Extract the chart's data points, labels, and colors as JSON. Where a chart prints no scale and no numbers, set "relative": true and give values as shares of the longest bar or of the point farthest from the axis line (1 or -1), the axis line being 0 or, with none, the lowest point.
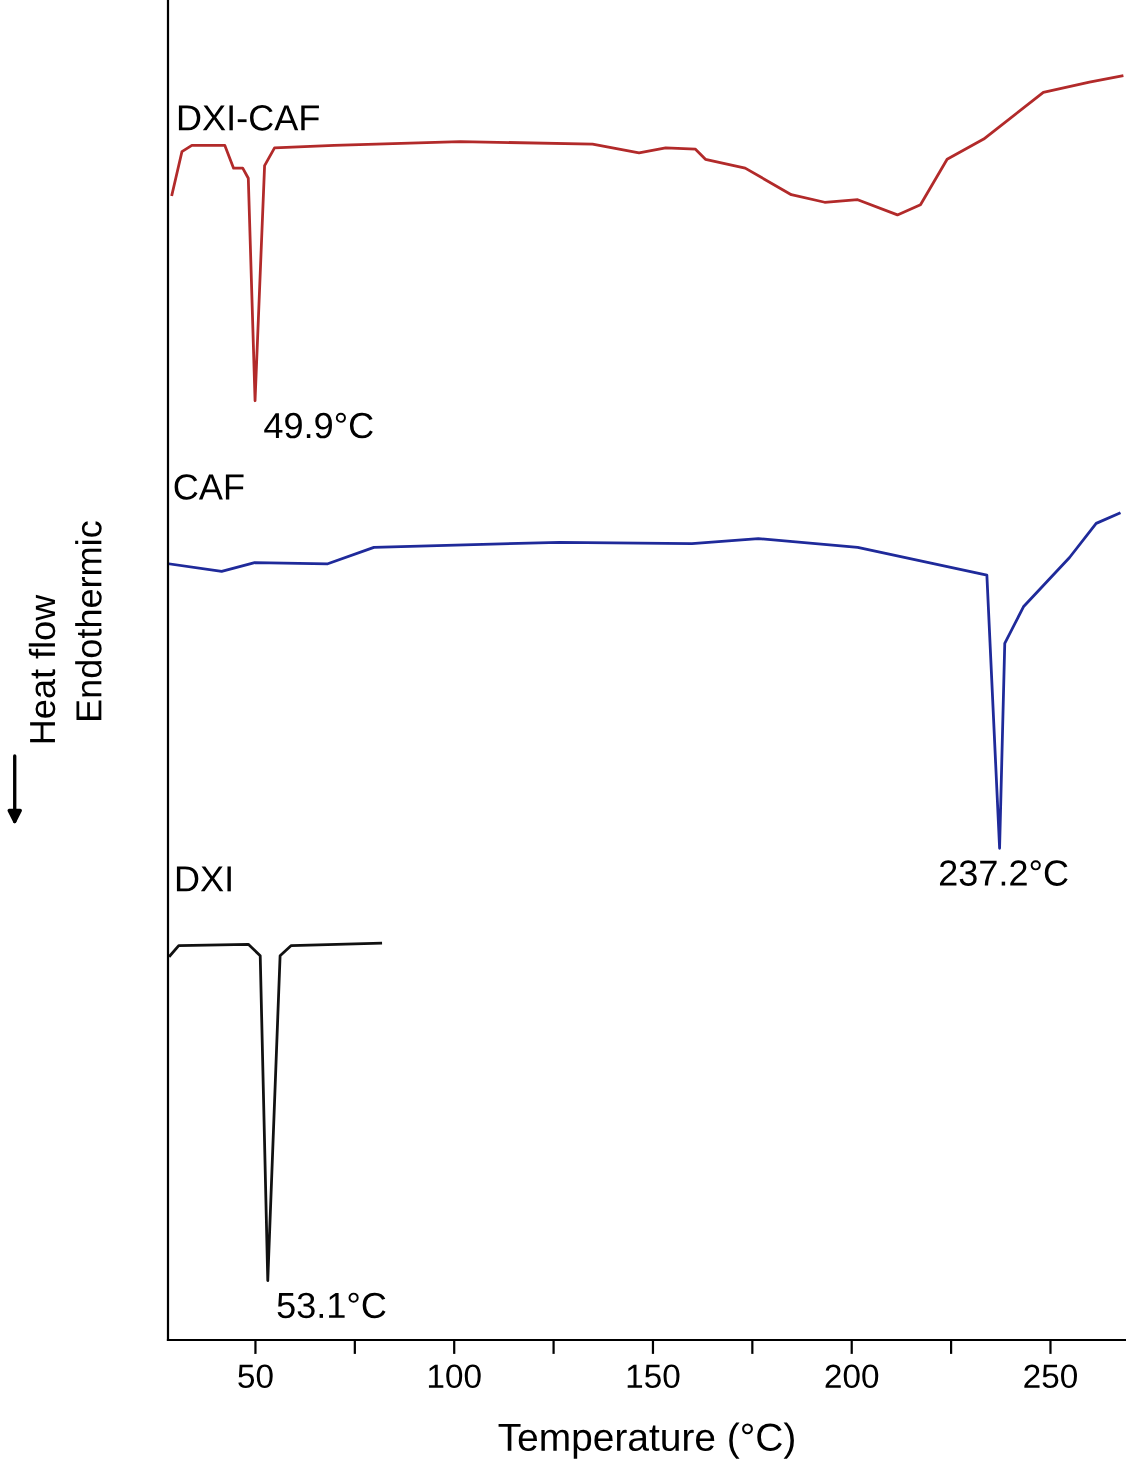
{
  "chart_data": {
    "type": "line",
    "relative": true,
    "xlabel": "Temperature (°C)",
    "ylabel": "Heat flow",
    "xlim": [
      28,
      269
    ],
    "xticks": [
      50,
      {
        "value": 75,
        "label": null
      },
      100,
      {
        "value": 125,
        "label": null
      },
      150,
      {
        "value": 175,
        "label": null
      },
      200,
      {
        "value": 225,
        "label": null
      },
      250
    ],
    "grid": false,
    "legend": false,
    "marker": "none",
    "line_style": "solid",
    "series": [
      {
        "name": "DXI-CAF",
        "color": "#b22a2a",
        "x": [
          29,
          31.5,
          34,
          42.3,
          44.5,
          46.8,
          48.2,
          49.9,
          52.3,
          54.8,
          69.8,
          101.5,
          134.8,
          146.5,
          153.2,
          160.7,
          163.2,
          173.2,
          184.8,
          193.2,
          201.5,
          211.5,
          217.3,
          224,
          233.2,
          248.2,
          259.8,
          268
        ],
        "values": [
          0.906,
          0.94,
          0.945,
          0.945,
          0.927,
          0.927,
          0.919,
          0.743,
          0.929,
          0.943,
          0.945,
          0.948,
          0.946,
          0.939,
          0.943,
          0.942,
          0.934,
          0.927,
          0.906,
          0.9,
          0.902,
          0.89,
          0.898,
          0.934,
          0.95,
          0.987,
          0.995,
          1.0
        ]
      },
      {
        "name": "CAF",
        "color": "#1f2a9a",
        "x": [
          28.2,
          41.5,
          49.8,
          68.2,
          79.8,
          126.5,
          159.8,
          176.5,
          201.5,
          234,
          237.2,
          238.5,
          243.2,
          254.8,
          261.5,
          267.3
        ],
        "values": [
          0.614,
          0.608,
          0.615,
          0.614,
          0.627,
          0.631,
          0.63,
          0.634,
          0.627,
          0.605,
          0.389,
          0.551,
          0.58,
          0.619,
          0.646,
          0.654
        ]
      },
      {
        "name": "DXI",
        "color": "#111111",
        "x": [
          28.5,
          30.7,
          48.2,
          51.2,
          53.1,
          56.2,
          59,
          81.5
        ],
        "values": [
          0.304,
          0.312,
          0.313,
          0.304,
          0.047,
          0.304,
          0.312,
          0.314
        ]
      }
    ],
    "annotations": [
      {
        "text": "49.9°C",
        "x": 49.9,
        "y": 0.743
      },
      {
        "text": "237.2°C",
        "x": 237.2,
        "y": 0.389
      },
      {
        "text": "53.1°C",
        "x": 53.1,
        "y": 0.047
      },
      "Endothermic"
    ]
  }
}
